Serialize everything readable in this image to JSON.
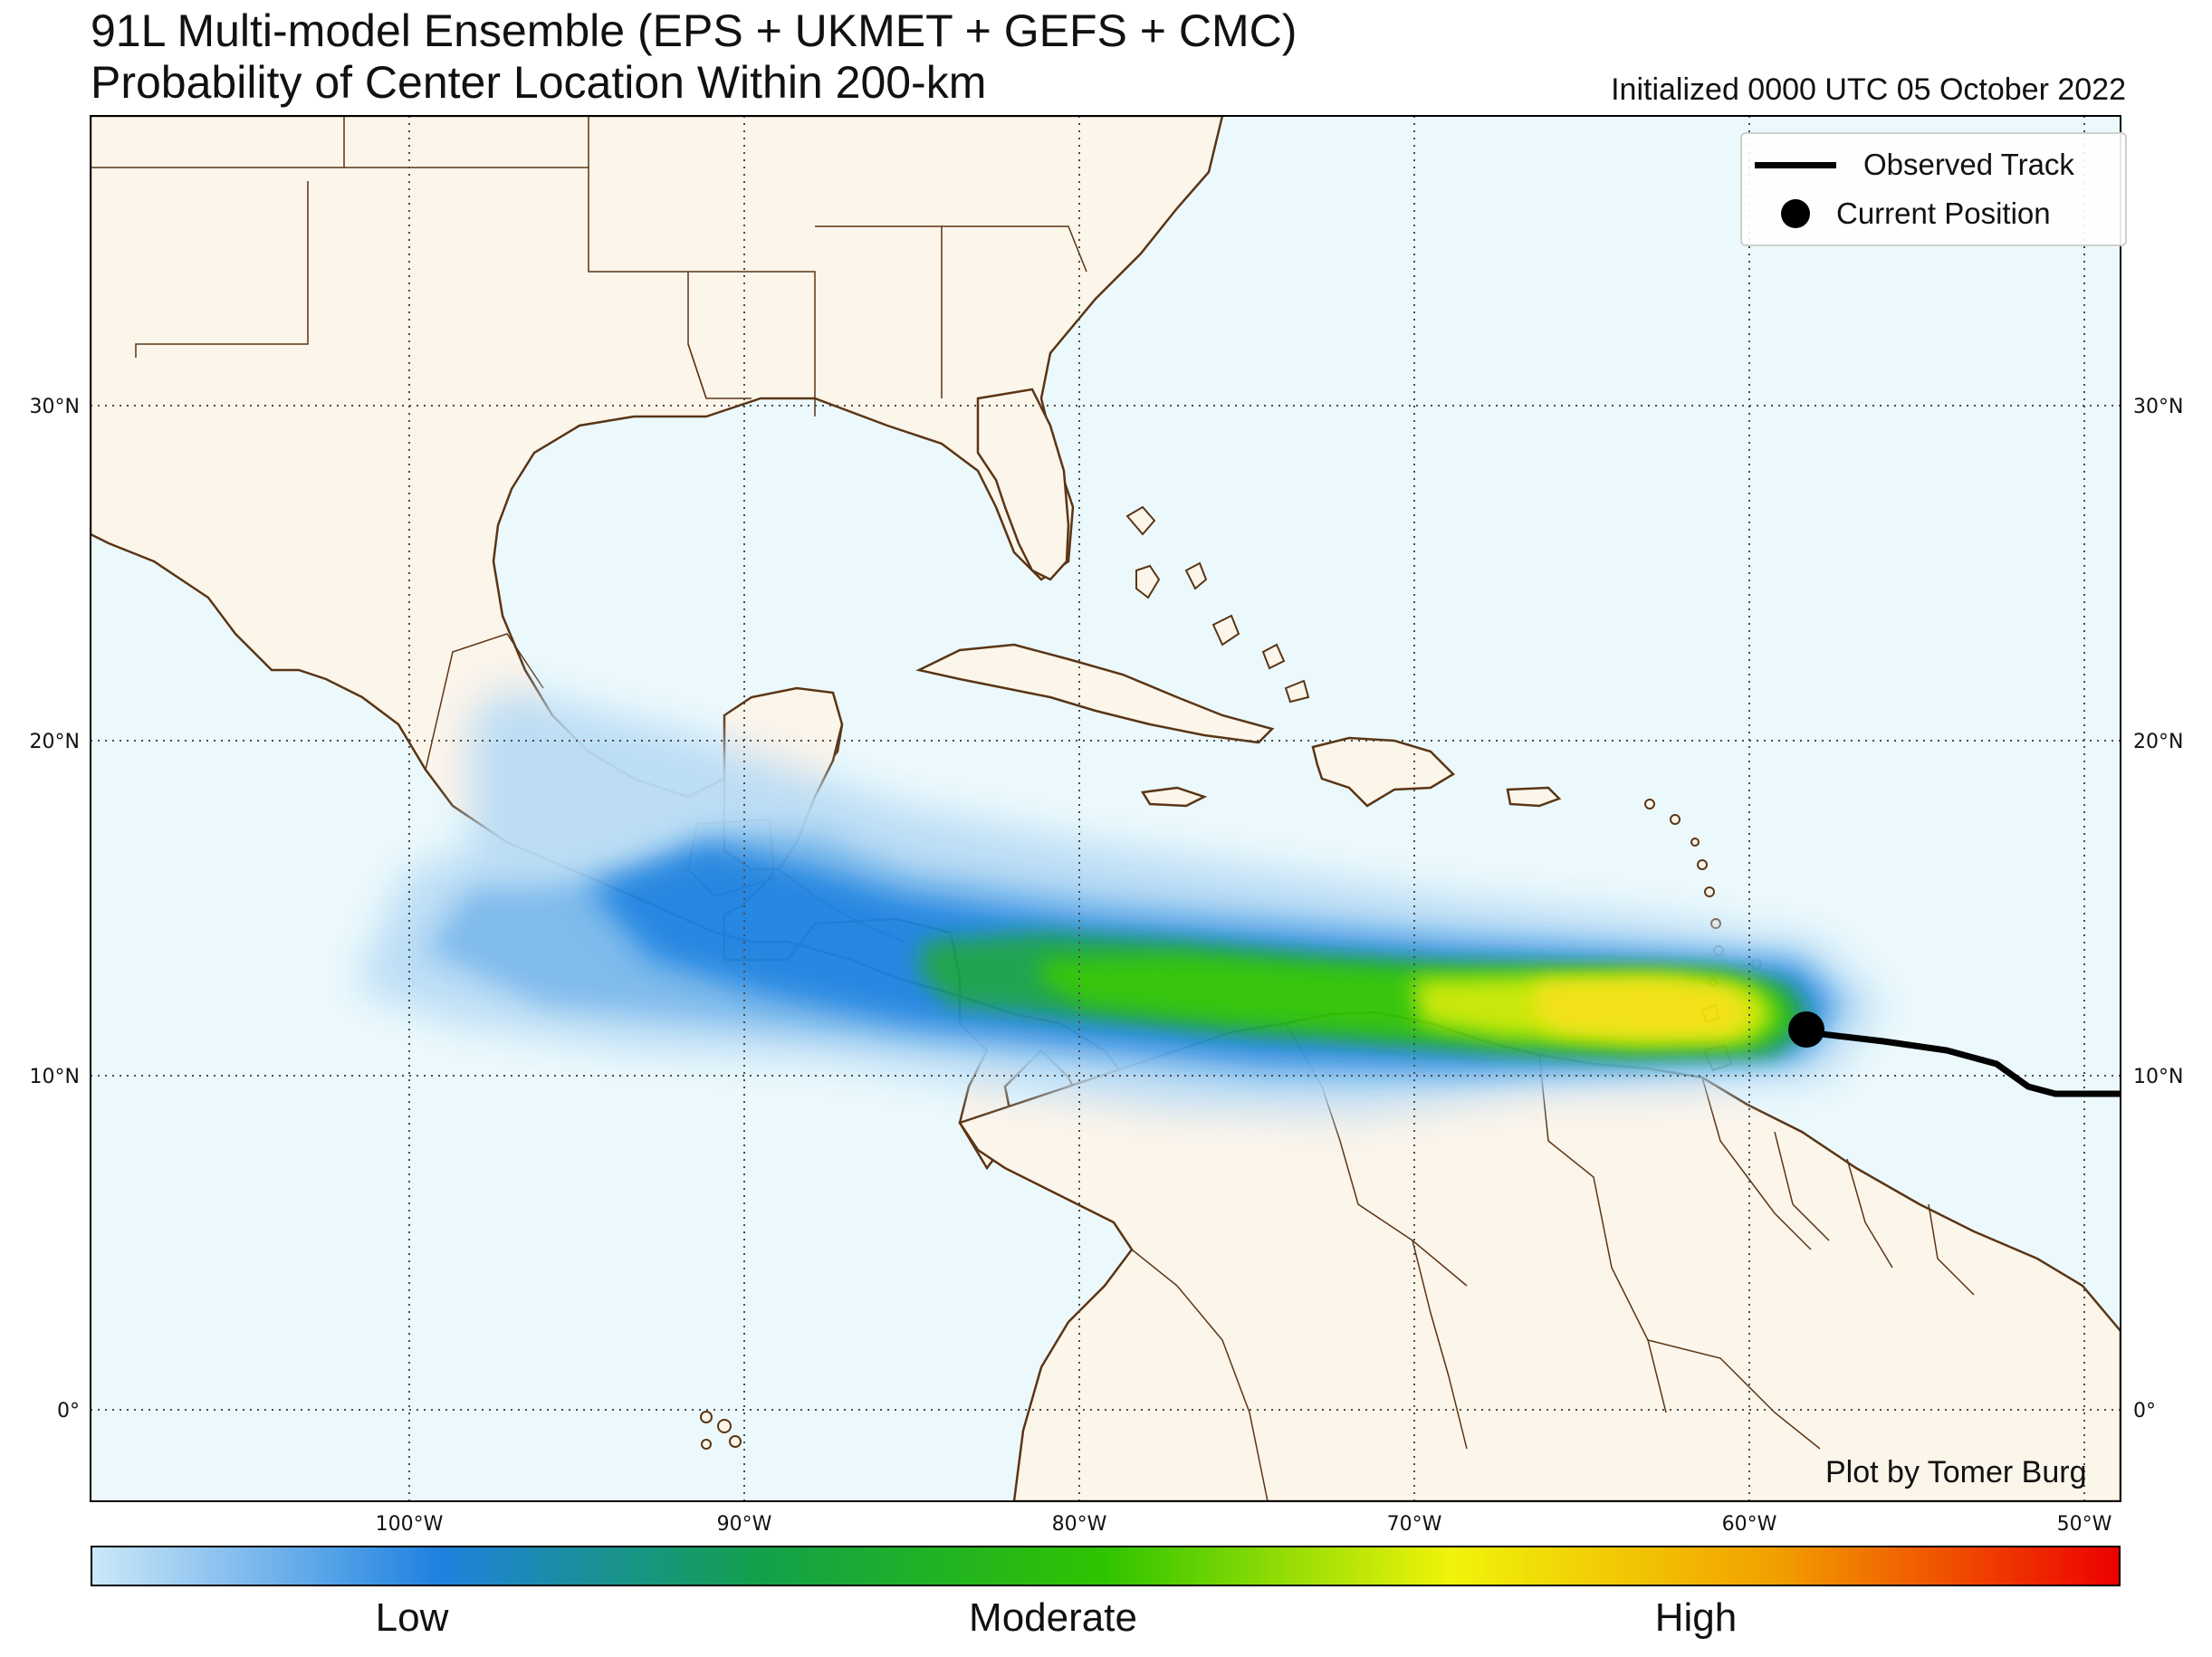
{
  "title": {
    "line1": "91L Multi-model Ensemble (EPS + UKMET + GEFS + CMC)",
    "line2": "Probability of Center Location Within 200-km",
    "initialized": "Initialized 0000 UTC 05 October 2022"
  },
  "map": {
    "lat_ticks": [
      "30°N",
      "20°N",
      "10°N",
      "0°"
    ],
    "lon_ticks": [
      "100°W",
      "90°W",
      "80°W",
      "70°W",
      "60°W",
      "50°W"
    ],
    "ocean_color": "#ecf9fc",
    "land_color": "#fcf5ea",
    "border_color": "#5a3515"
  },
  "legend": {
    "track_label": "Observed Track",
    "position_label": "Current Position"
  },
  "credit": "Plot by Tomer Burg",
  "colorbar": {
    "low": "Low",
    "moderate": "Moderate",
    "high": "High",
    "colors": [
      "#cce8f8",
      "#1f82e0",
      "#14a04a",
      "#2fc400",
      "#f1f40a",
      "#f2a000",
      "#ed0000"
    ]
  }
}
